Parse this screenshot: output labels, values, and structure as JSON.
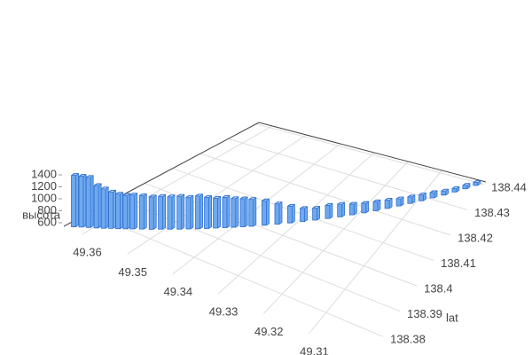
{
  "chart_data": {
    "type": "bar3d",
    "y_title": "lat",
    "z_title": "высота",
    "x": [
      49.3627,
      49.3617,
      49.3607,
      49.3596,
      49.3586,
      49.3576,
      49.3566,
      49.3556,
      49.3546,
      49.3533,
      49.3519,
      49.3506,
      49.3493,
      49.3479,
      49.3466,
      49.3452,
      49.3439,
      49.3426,
      49.3412,
      49.3399,
      49.3385,
      49.3372,
      49.3352,
      49.3332,
      49.3312,
      49.3292,
      49.3272,
      49.3251,
      49.3231,
      49.3211,
      49.3191,
      49.3171,
      49.3151,
      49.3131,
      49.3111,
      49.3091,
      49.3071,
      49.305,
      49.303,
      49.301,
      49.299
    ],
    "y": [
      138.3724,
      138.3735,
      138.3745,
      138.3756,
      138.3766,
      138.3777,
      138.3787,
      138.3798,
      138.3808,
      138.3822,
      138.3836,
      138.385,
      138.3864,
      138.3878,
      138.3892,
      138.3906,
      138.392,
      138.3934,
      138.3948,
      138.3962,
      138.3976,
      138.399,
      138.4011,
      138.4032,
      138.4053,
      138.4074,
      138.4095,
      138.4116,
      138.4137,
      138.4158,
      138.4179,
      138.42,
      138.4221,
      138.4242,
      138.4263,
      138.4284,
      138.4305,
      138.4326,
      138.4347,
      138.4368,
      138.4389
    ],
    "z": [
      1400,
      1390,
      1380,
      1250,
      1200,
      1150,
      1120,
      1100,
      1110,
      1100,
      1080,
      1090,
      1080,
      1090,
      1070,
      1090,
      1060,
      1040,
      1050,
      1020,
      1010,
      990,
      950,
      880,
      820,
      760,
      740,
      760,
      750,
      720,
      700,
      690,
      680,
      660,
      650,
      640,
      630,
      610,
      600,
      600,
      590
    ],
    "color": "#6ea8ee",
    "xlim": [
      49.297,
      49.364
    ],
    "xticks": [
      49.31,
      49.32,
      49.33,
      49.34,
      49.35,
      49.36
    ],
    "ylim": [
      138.371,
      138.441
    ],
    "yticks": [
      138.38,
      138.39,
      138.4,
      138.41,
      138.42,
      138.43,
      138.44
    ],
    "zlim": [
      540,
      1460
    ],
    "zticks": [
      600,
      800,
      1000,
      1200,
      1400
    ],
    "grid": true
  }
}
